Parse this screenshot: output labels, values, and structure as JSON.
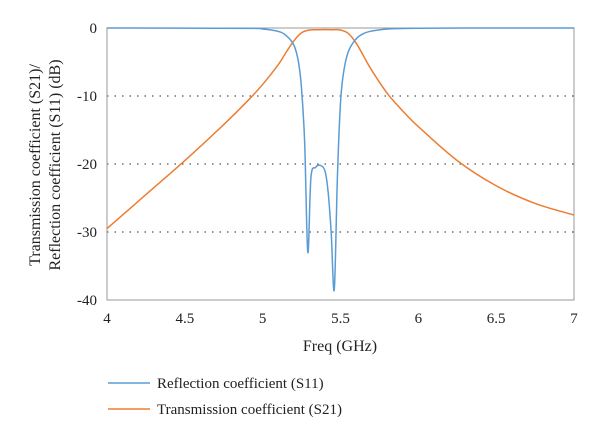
{
  "chart_data": {
    "type": "line",
    "title": "",
    "xlabel": "Freq (GHz)",
    "ylabel_lines": [
      "Transmission coefficient (S21)/",
      "Reflection coefficient (S11) (dB)"
    ],
    "xlim": [
      4,
      7
    ],
    "ylim": [
      -40,
      0
    ],
    "x_ticks": [
      "4",
      "4.5",
      "5",
      "5.5",
      "6",
      "6.5",
      "7"
    ],
    "y_ticks": [
      "0",
      "-10",
      "-20",
      "-30",
      "-40"
    ],
    "grid": "horizontal dotted",
    "legend_position": "bottom",
    "series": [
      {
        "name": "Reflection coefficient (S11)",
        "color": "#5b9bd5",
        "points": [
          [
            4.0,
            0
          ],
          [
            4.9,
            -0.05
          ],
          [
            5.0,
            -0.15
          ],
          [
            5.1,
            -0.5
          ],
          [
            5.15,
            -1.1
          ],
          [
            5.2,
            -2.5
          ],
          [
            5.23,
            -5
          ],
          [
            5.25,
            -9
          ],
          [
            5.27,
            -17
          ],
          [
            5.29,
            -33
          ],
          [
            5.31,
            -22
          ],
          [
            5.34,
            -20.5
          ],
          [
            5.37,
            -20.2
          ],
          [
            5.4,
            -21
          ],
          [
            5.42,
            -24
          ],
          [
            5.44,
            -30
          ],
          [
            5.46,
            -38.5
          ],
          [
            5.48,
            -22
          ],
          [
            5.5,
            -11
          ],
          [
            5.52,
            -6.5
          ],
          [
            5.55,
            -3.5
          ],
          [
            5.6,
            -1.6
          ],
          [
            5.65,
            -0.8
          ],
          [
            5.7,
            -0.45
          ],
          [
            5.8,
            -0.15
          ],
          [
            6.0,
            -0.04
          ],
          [
            6.5,
            0
          ],
          [
            7.0,
            0
          ]
        ]
      },
      {
        "name": "Transmission coefficient (S21)",
        "color": "#ed7d31",
        "points": [
          [
            4.0,
            -29.5
          ],
          [
            4.25,
            -24.5
          ],
          [
            4.5,
            -19.5
          ],
          [
            4.75,
            -14.2
          ],
          [
            4.9,
            -10.8
          ],
          [
            5.0,
            -8.3
          ],
          [
            5.1,
            -5.4
          ],
          [
            5.15,
            -3.6
          ],
          [
            5.2,
            -1.9
          ],
          [
            5.25,
            -0.7
          ],
          [
            5.3,
            -0.3
          ],
          [
            5.35,
            -0.25
          ],
          [
            5.45,
            -0.25
          ],
          [
            5.5,
            -0.3
          ],
          [
            5.55,
            -0.8
          ],
          [
            5.6,
            -2.2
          ],
          [
            5.65,
            -4.2
          ],
          [
            5.7,
            -6.2
          ],
          [
            5.8,
            -9.6
          ],
          [
            5.9,
            -12.2
          ],
          [
            6.0,
            -14.5
          ],
          [
            6.25,
            -19.5
          ],
          [
            6.5,
            -23.2
          ],
          [
            6.75,
            -25.8
          ],
          [
            7.0,
            -27.5
          ]
        ]
      }
    ]
  }
}
